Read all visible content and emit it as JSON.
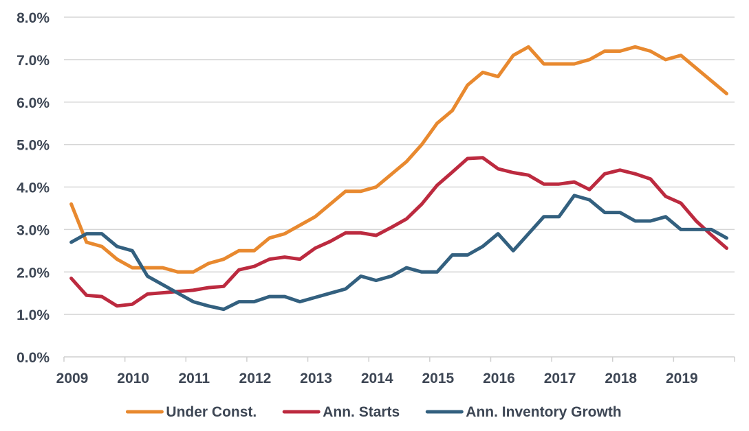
{
  "chart_data": {
    "type": "line",
    "title": "",
    "xlabel": "",
    "ylabel": "",
    "ylim": [
      0,
      8
    ],
    "xlim": [
      2009,
      2020
    ],
    "yticks": [
      {
        "value": 0,
        "label": "0.0%"
      },
      {
        "value": 1,
        "label": "1.0%"
      },
      {
        "value": 2,
        "label": "2.0%"
      },
      {
        "value": 3,
        "label": "3.0%"
      },
      {
        "value": 4,
        "label": "4.0%"
      },
      {
        "value": 5,
        "label": "5.0%"
      },
      {
        "value": 6,
        "label": "6.0%"
      },
      {
        "value": 7,
        "label": "7.0%"
      },
      {
        "value": 8,
        "label": "8.0%"
      }
    ],
    "xticks": [
      {
        "value": 2009,
        "label": "2009"
      },
      {
        "value": 2010,
        "label": "2010"
      },
      {
        "value": 2011,
        "label": "2011"
      },
      {
        "value": 2012,
        "label": "2012"
      },
      {
        "value": 2013,
        "label": "2013"
      },
      {
        "value": 2014,
        "label": "2014"
      },
      {
        "value": 2015,
        "label": "2015"
      },
      {
        "value": 2016,
        "label": "2016"
      },
      {
        "value": 2017,
        "label": "2017"
      },
      {
        "value": 2018,
        "label": "2018"
      },
      {
        "value": 2019,
        "label": "2019"
      }
    ],
    "grid": true,
    "legend": "bottom",
    "x": [
      2009.12,
      2009.37,
      2009.62,
      2009.87,
      2010.12,
      2010.37,
      2010.62,
      2010.87,
      2011.12,
      2011.37,
      2011.62,
      2011.87,
      2012.12,
      2012.37,
      2012.62,
      2012.87,
      2013.12,
      2013.37,
      2013.62,
      2013.87,
      2014.12,
      2014.37,
      2014.62,
      2014.87,
      2015.12,
      2015.37,
      2015.62,
      2015.87,
      2016.12,
      2016.37,
      2016.62,
      2016.87,
      2017.12,
      2017.37,
      2017.62,
      2017.87,
      2018.12,
      2018.37,
      2018.62,
      2018.87,
      2019.12,
      2019.37,
      2019.62,
      2019.87
    ],
    "series": [
      {
        "name": "Under Const.",
        "color": "#e8892f",
        "values": [
          3.6,
          2.7,
          2.6,
          2.3,
          2.1,
          2.1,
          2.1,
          2.0,
          2.0,
          2.2,
          2.3,
          2.5,
          2.5,
          2.8,
          2.9,
          3.1,
          3.3,
          3.6,
          3.9,
          3.9,
          4.0,
          4.3,
          4.6,
          5.0,
          5.5,
          5.8,
          6.4,
          6.7,
          6.6,
          7.1,
          7.3,
          6.9,
          6.9,
          6.9,
          7.0,
          7.2,
          7.2,
          7.3,
          7.2,
          7.0,
          7.1,
          6.8,
          6.5,
          6.2
        ]
      },
      {
        "name": "Ann. Starts",
        "color": "#bc2a3f",
        "values": [
          1.85,
          1.45,
          1.42,
          1.2,
          1.24,
          1.48,
          1.51,
          1.54,
          1.57,
          1.63,
          1.66,
          2.05,
          2.13,
          2.3,
          2.35,
          2.3,
          2.56,
          2.72,
          2.92,
          2.92,
          2.86,
          3.05,
          3.25,
          3.6,
          4.04,
          4.35,
          4.67,
          4.69,
          4.43,
          4.34,
          4.28,
          4.07,
          4.07,
          4.12,
          3.94,
          4.31,
          4.4,
          4.31,
          4.19,
          3.78,
          3.62,
          3.2,
          2.87,
          2.56
        ]
      },
      {
        "name": "Ann. Inventory Growth",
        "color": "#33607f",
        "values": [
          2.7,
          2.9,
          2.9,
          2.6,
          2.5,
          1.9,
          1.7,
          1.5,
          1.3,
          1.2,
          1.12,
          1.3,
          1.3,
          1.42,
          1.42,
          1.3,
          1.4,
          1.5,
          1.6,
          1.9,
          1.8,
          1.9,
          2.1,
          2.0,
          2.0,
          2.4,
          2.4,
          2.6,
          2.9,
          2.5,
          2.9,
          3.3,
          3.3,
          3.8,
          3.7,
          3.4,
          3.4,
          3.2,
          3.2,
          3.3,
          3.0,
          3.0,
          3.0,
          2.8
        ]
      }
    ]
  }
}
